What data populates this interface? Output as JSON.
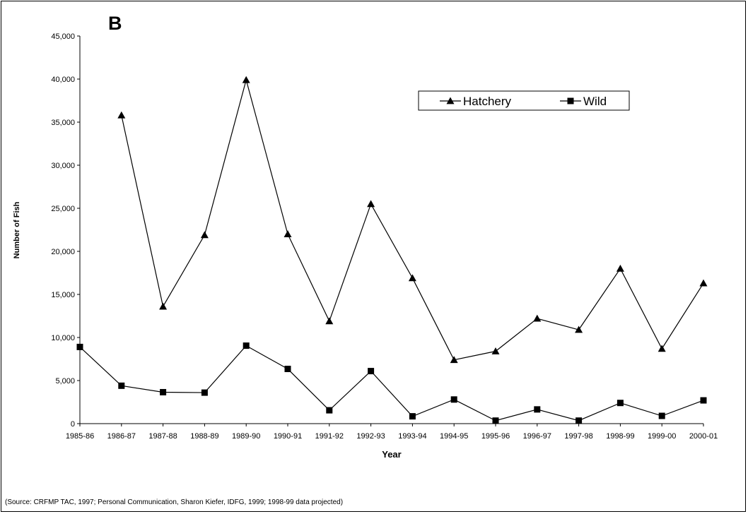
{
  "chart_data": {
    "type": "line",
    "panel_label": "B",
    "xlabel": "Year",
    "ylabel": "Number of Fish",
    "ylim": [
      0,
      45000
    ],
    "yticks": [
      "0",
      "5,000",
      "10,000",
      "15,000",
      "20,000",
      "25,000",
      "30,000",
      "35,000",
      "40,000",
      "45,000"
    ],
    "categories": [
      "1985-86",
      "1986-87",
      "1987-88",
      "1988-89",
      "1989-90",
      "1990-91",
      "1991-92",
      "1992-93",
      "1993-94",
      "1994-95",
      "1995-96",
      "1996-97",
      "1997-98",
      "1998-99",
      "1999-00",
      "2000-01"
    ],
    "grid": false,
    "legend": "top-right",
    "series": [
      {
        "name": "Hatchery",
        "marker": "triangle",
        "color": "#000000",
        "values": [
          null,
          35800,
          13600,
          21900,
          39900,
          22000,
          11900,
          25500,
          16900,
          7400,
          8400,
          12200,
          10900,
          18000,
          8700,
          16300
        ]
      },
      {
        "name": "Wild",
        "marker": "square",
        "color": "#000000",
        "values": [
          8900,
          4400,
          3650,
          3600,
          9050,
          6350,
          1550,
          6100,
          850,
          2800,
          350,
          1650,
          350,
          2400,
          900,
          2700
        ]
      }
    ],
    "source_note": "(Source: CRFMP TAC, 1997; Personal Communication, Sharon Kiefer,  IDFG, 1999; 1998-99 data projected)"
  }
}
